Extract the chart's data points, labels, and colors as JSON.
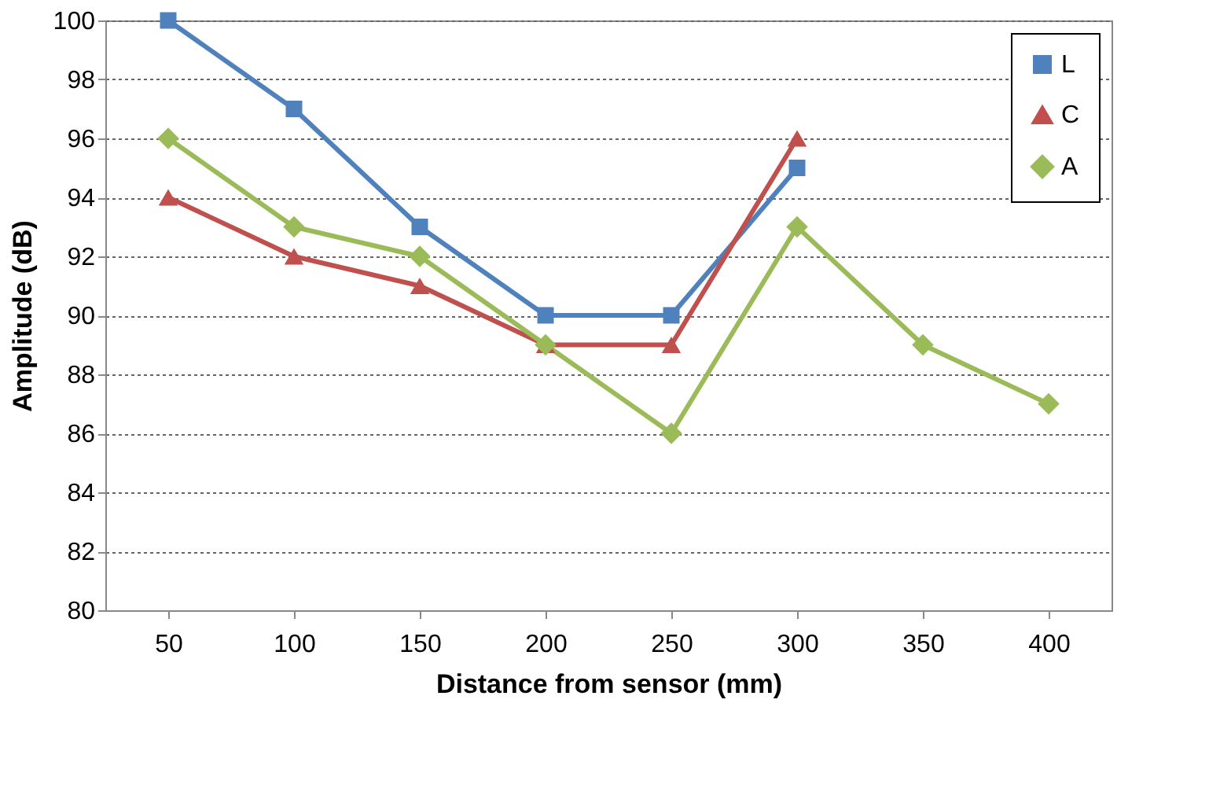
{
  "chart_data": {
    "type": "line",
    "xlabel": "Distance from sensor (mm)",
    "ylabel": "Amplitude (dB)",
    "categories": [
      "50",
      "100",
      "150",
      "200",
      "250",
      "300",
      "350",
      "400"
    ],
    "series": [
      {
        "name": "L",
        "color": "#4f81bd",
        "marker": "square",
        "values": [
          100,
          97,
          93,
          90,
          90,
          95,
          null,
          null
        ]
      },
      {
        "name": "C",
        "color": "#c0504d",
        "marker": "triangle",
        "values": [
          94,
          92,
          91,
          89,
          89,
          96,
          null,
          null
        ]
      },
      {
        "name": "A",
        "color": "#9bbb59",
        "marker": "diamond",
        "values": [
          96,
          93,
          92,
          89,
          86,
          93,
          89,
          87
        ]
      }
    ],
    "ylim": [
      80,
      100
    ],
    "yticks": [
      80,
      82,
      84,
      86,
      88,
      90,
      92,
      94,
      96,
      98,
      100
    ],
    "grid": "y",
    "legend": "top right",
    "line_style": "solid"
  }
}
